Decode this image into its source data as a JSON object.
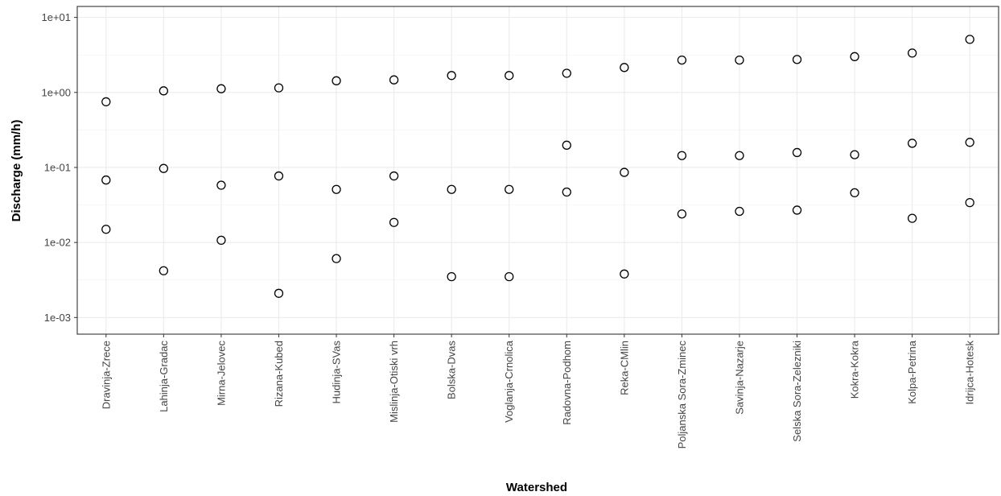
{
  "chart_data": {
    "type": "scatter",
    "title": "",
    "xlabel": "Watershed",
    "ylabel": "Discharge (mm/h)",
    "y_scale": "log10",
    "ylim": [
      0.0006,
      14
    ],
    "grid": true,
    "y_ticks": [
      {
        "value": 0.001,
        "label": "1e-03"
      },
      {
        "value": 0.01,
        "label": "1e-02"
      },
      {
        "value": 0.1,
        "label": "1e-01"
      },
      {
        "value": 1,
        "label": "1e+00"
      },
      {
        "value": 10,
        "label": "1e+01"
      }
    ],
    "categories": [
      "Dravinja-Zrece",
      "Lahinja-Gradac",
      "Mirna-Jelovec",
      "Rizana-Kubed",
      "Hudinja-SVas",
      "Mislinja-Otiski vrh",
      "Bolska-Dvas",
      "Voglanja-Crnolica",
      "Radovna-Podhom",
      "Reka-CMlin",
      "Poljanska Sora-Zminec",
      "Savinja-Nazarje",
      "Selska Sora-Zelezniki",
      "Kokra-Kokra",
      "Kolpa-Petrina",
      "Idrijca-Hotesk"
    ],
    "points": [
      {
        "x": "Dravinja-Zrece",
        "y": [
          0.75,
          0.068,
          0.015
        ]
      },
      {
        "x": "Lahinja-Gradac",
        "y": [
          1.05,
          0.097,
          0.0042
        ]
      },
      {
        "x": "Mirna-Jelovec",
        "y": [
          1.12,
          0.058,
          0.0107
        ]
      },
      {
        "x": "Rizana-Kubed",
        "y": [
          1.15,
          0.077,
          0.0021
        ]
      },
      {
        "x": "Hudinja-SVas",
        "y": [
          1.43,
          0.051,
          0.0061
        ]
      },
      {
        "x": "Mislinja-Otiski vrh",
        "y": [
          1.47,
          0.077,
          0.0185
        ]
      },
      {
        "x": "Bolska-Dvas",
        "y": [
          1.68,
          0.051,
          0.0035
        ]
      },
      {
        "x": "Voglanja-Crnolica",
        "y": [
          1.68,
          0.051,
          0.0035
        ]
      },
      {
        "x": "Radovna-Podhom",
        "y": [
          1.8,
          0.198,
          0.047
        ]
      },
      {
        "x": "Reka-CMlin",
        "y": [
          2.15,
          0.086,
          0.0038
        ]
      },
      {
        "x": "Poljanska Sora-Zminec",
        "y": [
          2.7,
          0.144,
          0.024
        ]
      },
      {
        "x": "Savinja-Nazarje",
        "y": [
          2.7,
          0.144,
          0.026
        ]
      },
      {
        "x": "Selska Sora-Zelezniki",
        "y": [
          2.75,
          0.158,
          0.027
        ]
      },
      {
        "x": "Kokra-Kokra",
        "y": [
          3.0,
          0.148,
          0.046
        ]
      },
      {
        "x": "Kolpa-Petrina",
        "y": [
          3.35,
          0.21,
          0.021
        ]
      },
      {
        "x": "Idrijca-Hotesk",
        "y": [
          5.1,
          0.216,
          0.034
        ]
      }
    ]
  }
}
